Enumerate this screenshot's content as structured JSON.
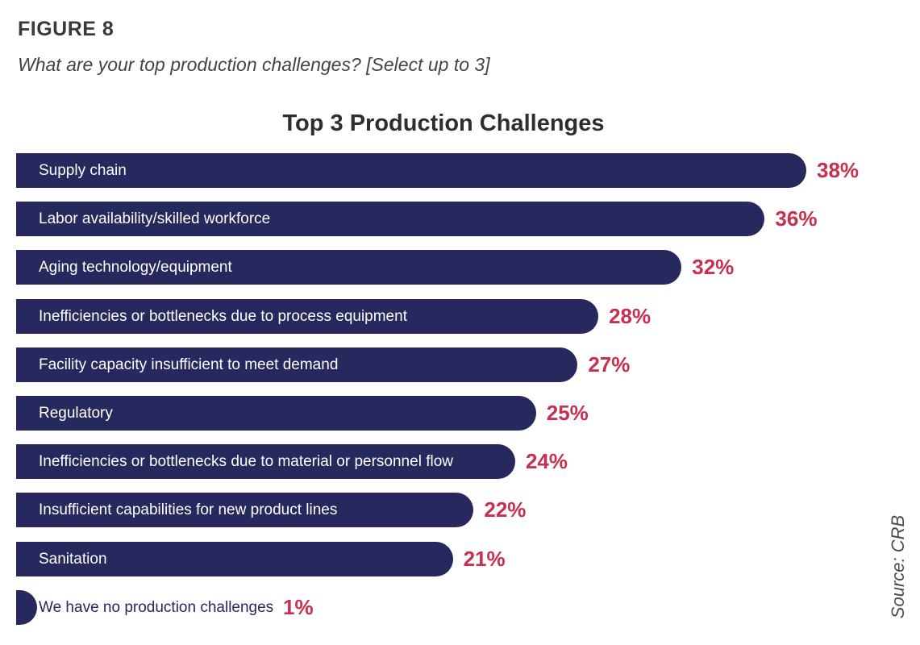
{
  "figure": {
    "label": "FIGURE 8",
    "question": "What are your top production challenges? [Select up to 3]",
    "source": "Source: CRB"
  },
  "colors": {
    "bar": "#26285e",
    "bar_label_on_bar": "#ffffff",
    "bar_label_off_bar": "#26285e",
    "value": "#c8304f"
  },
  "chart_data": {
    "type": "bar",
    "orientation": "horizontal",
    "title": "Top 3 Production Challenges",
    "xlabel": "",
    "ylabel": "",
    "grid": false,
    "legend": "none",
    "xlim": [
      0,
      38
    ],
    "categories": [
      "Supply chain",
      "Labor availability/skilled workforce",
      "Aging technology/equipment",
      "Inefficiencies or bottlenecks due to process equipment",
      "Facility capacity insufficient to meet demand",
      "Regulatory",
      "Inefficiencies or bottlenecks due to material or personnel flow",
      "Insufficient capabilities for new product lines",
      "Sanitation",
      "We have no production challenges"
    ],
    "values": [
      38,
      36,
      32,
      28,
      27,
      25,
      24,
      22,
      21,
      1
    ],
    "value_labels": [
      "38%",
      "36%",
      "32%",
      "28%",
      "27%",
      "25%",
      "24%",
      "22%",
      "21%",
      "1%"
    ]
  }
}
